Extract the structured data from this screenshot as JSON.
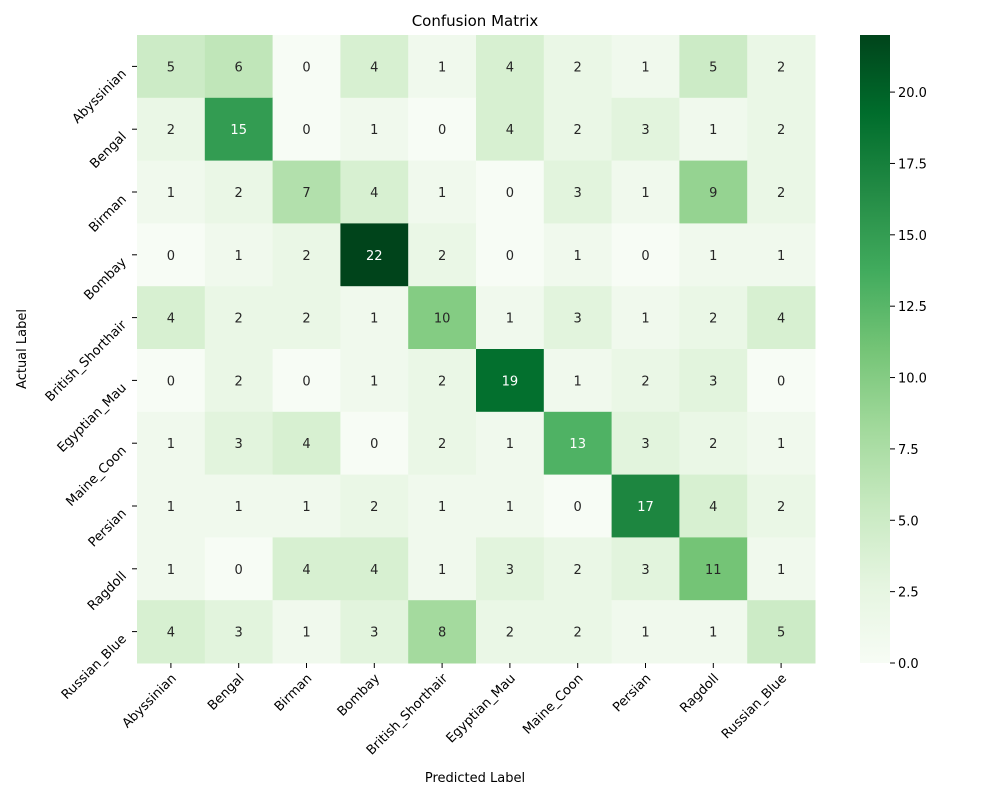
{
  "chart_data": {
    "type": "heatmap",
    "title": "Confusion Matrix",
    "xlabel": "Predicted Label",
    "ylabel": "Actual Label",
    "x_categories": [
      "Abyssinian",
      "Bengal",
      "Birman",
      "Bombay",
      "British_Shorthair",
      "Egyptian_Mau",
      "Maine_Coon",
      "Persian",
      "Ragdoll",
      "Russian_Blue"
    ],
    "y_categories": [
      "Abyssinian",
      "Bengal",
      "Birman",
      "Bombay",
      "British_Shorthair",
      "Egyptian_Mau",
      "Maine_Coon",
      "Persian",
      "Ragdoll",
      "Russian_Blue"
    ],
    "values": [
      [
        5,
        6,
        0,
        4,
        1,
        4,
        2,
        1,
        5,
        2
      ],
      [
        2,
        15,
        0,
        1,
        0,
        4,
        2,
        3,
        1,
        2
      ],
      [
        1,
        2,
        7,
        4,
        1,
        0,
        3,
        1,
        9,
        2
      ],
      [
        0,
        1,
        2,
        22,
        2,
        0,
        1,
        0,
        1,
        1
      ],
      [
        4,
        2,
        2,
        1,
        10,
        1,
        3,
        1,
        2,
        4
      ],
      [
        0,
        2,
        0,
        1,
        2,
        19,
        1,
        2,
        3,
        0
      ],
      [
        1,
        3,
        4,
        0,
        2,
        1,
        13,
        3,
        2,
        1
      ],
      [
        1,
        1,
        1,
        2,
        1,
        1,
        0,
        17,
        4,
        2
      ],
      [
        1,
        0,
        4,
        4,
        1,
        3,
        2,
        3,
        11,
        1
      ],
      [
        4,
        3,
        1,
        3,
        8,
        2,
        2,
        1,
        1,
        5
      ]
    ],
    "colormap": "Greens",
    "colormap_stops": [
      "#f7fcf5",
      "#e5f5e0",
      "#c7e9c0",
      "#a1d99b",
      "#74c476",
      "#41ab5d",
      "#238b45",
      "#006d2c",
      "#00441b"
    ],
    "colorbar_range": [
      0,
      22
    ],
    "colorbar_ticks": [
      "0.0",
      "2.5",
      "5.0",
      "7.5",
      "10.0",
      "12.5",
      "15.0",
      "17.5",
      "20.0"
    ],
    "annotation_color_dark": "#262626",
    "annotation_color_light": "#ffffff"
  }
}
